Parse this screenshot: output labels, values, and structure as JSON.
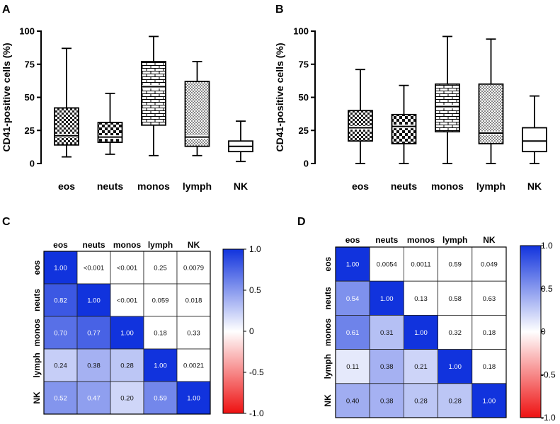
{
  "panels": {
    "A": {
      "letter": "A"
    },
    "B": {
      "letter": "B"
    },
    "C": {
      "letter": "C"
    },
    "D": {
      "letter": "D"
    }
  },
  "chart_data": [
    {
      "type": "box",
      "panel": "A",
      "ylabel": "CD41-positive cells (%)",
      "xlabel": "",
      "ylim": [
        0,
        100
      ],
      "yticks": [
        "0",
        "25",
        "50",
        "75",
        "100"
      ],
      "categories": [
        "eos",
        "neuts",
        "monos",
        "lymph",
        "NK"
      ],
      "boxes": [
        {
          "category": "eos",
          "min": 5,
          "q1": 14,
          "median": 21,
          "q3": 42,
          "max": 87,
          "pattern": "checker-small"
        },
        {
          "category": "neuts",
          "min": 7,
          "q1": 16,
          "median": 20,
          "q3": 31,
          "max": 53,
          "pattern": "checker-large"
        },
        {
          "category": "monos",
          "min": 6,
          "q1": 29,
          "median": 58,
          "q3": 77,
          "max": 96,
          "pattern": "brick"
        },
        {
          "category": "lymph",
          "min": 6,
          "q1": 13,
          "median": 20,
          "q3": 62,
          "max": 77,
          "pattern": "dots"
        },
        {
          "category": "NK",
          "min": 1.5,
          "q1": 9,
          "median": 13,
          "q3": 17,
          "max": 32,
          "pattern": "none"
        }
      ]
    },
    {
      "type": "box",
      "panel": "B",
      "ylabel": "CD41-positive cells (%)",
      "xlabel": "",
      "ylim": [
        0,
        100
      ],
      "yticks": [
        "0",
        "25",
        "50",
        "75",
        "100"
      ],
      "categories": [
        "eos",
        "neuts",
        "monos",
        "lymph",
        "NK"
      ],
      "boxes": [
        {
          "category": "eos",
          "min": 0,
          "q1": 17,
          "median": 27,
          "q3": 40,
          "max": 71,
          "pattern": "checker-small"
        },
        {
          "category": "neuts",
          "min": 0,
          "q1": 15,
          "median": 28,
          "q3": 37,
          "max": 59,
          "pattern": "checker-large"
        },
        {
          "category": "monos",
          "min": 0,
          "q1": 24,
          "median": 43,
          "q3": 60,
          "max": 96,
          "pattern": "brick"
        },
        {
          "category": "lymph",
          "min": 0,
          "q1": 15,
          "median": 23,
          "q3": 60,
          "max": 94,
          "pattern": "dots"
        },
        {
          "category": "NK",
          "min": 0,
          "q1": 9,
          "median": 17,
          "q3": 27,
          "max": 51,
          "pattern": "none"
        }
      ]
    },
    {
      "type": "heatmap",
      "panel": "C",
      "title": "",
      "columns": [
        "eos",
        "neuts",
        "monos",
        "lymph",
        "NK"
      ],
      "rows": [
        "eos",
        "neuts",
        "monos",
        "lymph",
        "NK"
      ],
      "cells": [
        [
          {
            "label": "1.00",
            "r": 1.0
          },
          {
            "label": "<0.001",
            "r": 0
          },
          {
            "label": "<0.001",
            "r": 0
          },
          {
            "label": "0.25",
            "r": 0
          },
          {
            "label": "0.0079",
            "r": 0
          }
        ],
        [
          {
            "label": "0.82",
            "r": 0.82
          },
          {
            "label": "1.00",
            "r": 1.0
          },
          {
            "label": "<0.001",
            "r": 0
          },
          {
            "label": "0.059",
            "r": 0
          },
          {
            "label": "0.018",
            "r": 0
          }
        ],
        [
          {
            "label": "0.70",
            "r": 0.7
          },
          {
            "label": "0.77",
            "r": 0.77
          },
          {
            "label": "1.00",
            "r": 1.0
          },
          {
            "label": "0.18",
            "r": 0
          },
          {
            "label": "0.33",
            "r": 0
          }
        ],
        [
          {
            "label": "0.24",
            "r": 0.24
          },
          {
            "label": "0.38",
            "r": 0.38
          },
          {
            "label": "0.28",
            "r": 0.28
          },
          {
            "label": "1.00",
            "r": 1.0
          },
          {
            "label": "0.0021",
            "r": 0
          }
        ],
        [
          {
            "label": "0.52",
            "r": 0.52
          },
          {
            "label": "0.47",
            "r": 0.47
          },
          {
            "label": "0.20",
            "r": 0.2
          },
          {
            "label": "0.59",
            "r": 0.59
          },
          {
            "label": "1.00",
            "r": 1.0
          }
        ]
      ],
      "colorbar": {
        "range": [
          -1.0,
          1.0
        ],
        "ticks": [
          "1.0",
          "0.5",
          "0",
          "-0.5",
          "-1.0"
        ],
        "colors": {
          "high": "#1133dd",
          "mid": "#ffffff",
          "low": "#ee1111"
        }
      }
    },
    {
      "type": "heatmap",
      "panel": "D",
      "title": "",
      "columns": [
        "eos",
        "neuts",
        "monos",
        "lymph",
        "NK"
      ],
      "rows": [
        "eos",
        "neuts",
        "monos",
        "lymph",
        "NK"
      ],
      "cells": [
        [
          {
            "label": "1.00",
            "r": 1.0
          },
          {
            "label": "0.0054",
            "r": 0
          },
          {
            "label": "0.0011",
            "r": 0
          },
          {
            "label": "0.59",
            "r": 0
          },
          {
            "label": "0.049",
            "r": 0
          }
        ],
        [
          {
            "label": "0.54",
            "r": 0.54
          },
          {
            "label": "1.00",
            "r": 1.0
          },
          {
            "label": "0.13",
            "r": 0
          },
          {
            "label": "0.58",
            "r": 0
          },
          {
            "label": "0.63",
            "r": 0
          }
        ],
        [
          {
            "label": "0.61",
            "r": 0.61
          },
          {
            "label": "0.31",
            "r": 0.31
          },
          {
            "label": "1.00",
            "r": 1.0
          },
          {
            "label": "0.32",
            "r": 0
          },
          {
            "label": "0.18",
            "r": 0
          }
        ],
        [
          {
            "label": "0.11",
            "r": 0.11
          },
          {
            "label": "0.38",
            "r": 0.38
          },
          {
            "label": "0.21",
            "r": 0.21
          },
          {
            "label": "1.00",
            "r": 1.0
          },
          {
            "label": "0.18",
            "r": 0
          }
        ],
        [
          {
            "label": "0.40",
            "r": 0.4
          },
          {
            "label": "0.38",
            "r": 0.38
          },
          {
            "label": "0.28",
            "r": 0.28
          },
          {
            "label": "0.28",
            "r": 0.28
          },
          {
            "label": "1.00",
            "r": 1.0
          }
        ]
      ],
      "colorbar": {
        "range": [
          -1.0,
          1.0
        ],
        "ticks": [
          "1.0",
          "0.5",
          "0",
          "-0.5",
          "-1.0"
        ],
        "colors": {
          "high": "#1133dd",
          "mid": "#ffffff",
          "low": "#ee1111"
        }
      }
    }
  ]
}
